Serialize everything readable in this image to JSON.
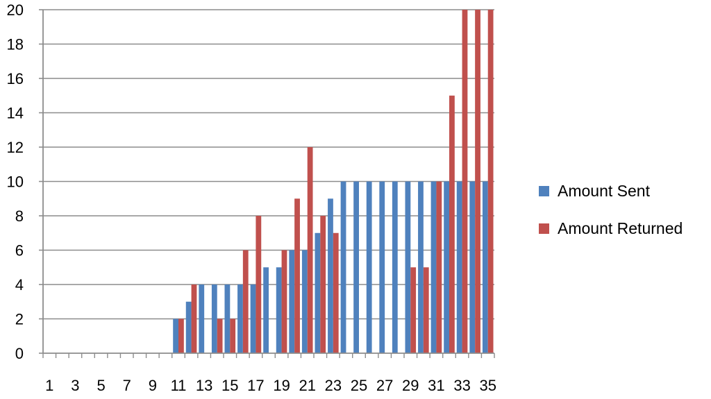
{
  "chart_data": {
    "type": "bar",
    "categories": [
      "1",
      "2",
      "3",
      "4",
      "5",
      "6",
      "7",
      "8",
      "9",
      "10",
      "11",
      "12",
      "13",
      "14",
      "15",
      "16",
      "17",
      "18",
      "19",
      "20",
      "21",
      "22",
      "23",
      "24",
      "25",
      "26",
      "27",
      "28",
      "29",
      "30",
      "31",
      "32",
      "33",
      "34",
      "35"
    ],
    "x_tick_labels": [
      "1",
      "3",
      "5",
      "7",
      "9",
      "11",
      "13",
      "15",
      "17",
      "19",
      "21",
      "23",
      "25",
      "27",
      "29",
      "31",
      "33",
      "35"
    ],
    "series": [
      {
        "name": "Amount Sent",
        "color": "#4F81BD",
        "values": [
          0,
          0,
          0,
          0,
          0,
          0,
          0,
          0,
          0,
          0,
          2,
          3,
          4,
          4,
          4,
          4,
          4,
          5,
          5,
          6,
          6,
          7,
          9,
          10,
          10,
          10,
          10,
          10,
          10,
          10,
          10,
          10,
          10,
          10,
          10
        ]
      },
      {
        "name": "Amount Returned",
        "color": "#C0504D",
        "values": [
          0,
          0,
          0,
          0,
          0,
          0,
          0,
          0,
          0,
          0,
          2,
          4,
          0,
          2,
          2,
          6,
          8,
          0,
          6,
          9,
          12,
          8,
          7,
          0,
          0,
          0,
          0,
          0,
          5,
          5,
          10,
          15,
          20,
          20,
          20
        ]
      }
    ],
    "ylim": [
      0,
      20
    ],
    "y_ticks": [
      "0",
      "2",
      "4",
      "6",
      "8",
      "10",
      "12",
      "14",
      "16",
      "18",
      "20"
    ],
    "grid": "horizontal",
    "legend_position": "right",
    "title": "",
    "xlabel": "",
    "ylabel": ""
  }
}
